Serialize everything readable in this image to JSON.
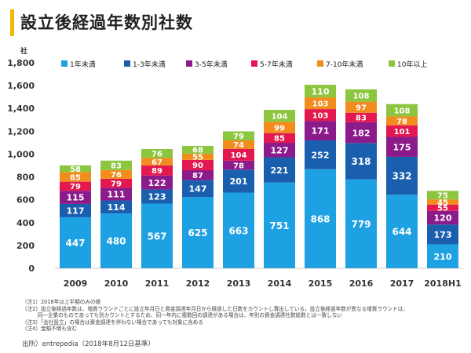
{
  "title": "設立後経過年数別社数",
  "chart_data": {
    "type": "stacked-bar",
    "ylabel": "社",
    "ylim": [
      0,
      1800
    ],
    "yticks": [
      0,
      200,
      400,
      600,
      800,
      "1,000",
      "1,200",
      "1,400",
      "1,600",
      "1,800"
    ],
    "categories": [
      "2009",
      "2010",
      "2011",
      "2012",
      "2013",
      "2014",
      "2015",
      "2016",
      "2017",
      "2018H1"
    ],
    "series": [
      {
        "name": "1年未満",
        "color": "#1da1e2",
        "values": [
          447,
          480,
          567,
          625,
          663,
          751,
          868,
          779,
          644,
          210
        ]
      },
      {
        "name": "1-3年未満",
        "color": "#1a5fae",
        "values": [
          117,
          114,
          123,
          147,
          201,
          221,
          252,
          318,
          332,
          173
        ]
      },
      {
        "name": "3-5年未満",
        "color": "#8b1a8b",
        "values": [
          115,
          111,
          122,
          87,
          78,
          127,
          171,
          182,
          175,
          120
        ]
      },
      {
        "name": "5-7年未満",
        "color": "#e3184f",
        "values": [
          79,
          79,
          89,
          90,
          104,
          85,
          103,
          83,
          101,
          55
        ]
      },
      {
        "name": "7-10年未満",
        "color": "#f28c1c",
        "values": [
          85,
          76,
          67,
          55,
          74,
          99,
          103,
          97,
          78,
          45
        ]
      },
      {
        "name": "10年以上",
        "color": "#8cc63f",
        "values": [
          58,
          83,
          76,
          68,
          79,
          104,
          110,
          108,
          108,
          75
        ]
      }
    ]
  },
  "notes": [
    "（注1）2018年は上半期のみの値",
    "（注2）設立後経過年数は、増資ラウンドごとに設立年月日と資金調達年月日から経過した日数をカウントし算出している。設立後経過年数が異なる増資ラウンドは、",
    "　　　同一企業のものであっても別カウントとするため、同一年内に複数回の調達がある場合は、年別の資金調達社数総数とは一致しない",
    "（注3）「会社設立」の場合は資金調達を伴わない場合であっても対象に含める",
    "（注4）金額不明も含む"
  ],
  "source": "出所）entrepedia（2018年8月12日基準）"
}
